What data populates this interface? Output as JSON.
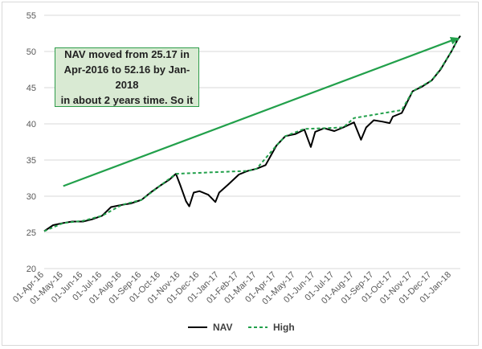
{
  "chart_data": {
    "type": "line",
    "title": "",
    "xlabel": "",
    "ylabel": "",
    "ylim": [
      20,
      55
    ],
    "y_ticks": [
      "20",
      "25",
      "30",
      "35",
      "40",
      "45",
      "50",
      "55"
    ],
    "x_ticks": [
      "01-Apr-16",
      "01-May-16",
      "01-Jun-16",
      "01-Jul-16",
      "01-Aug-16",
      "01-Sep-16",
      "01-Oct-16",
      "01-Nov-16",
      "01-Dec-16",
      "01-Jan-17",
      "01-Feb-17",
      "01-Mar-17",
      "01-Apr-17",
      "01-May-17",
      "01-Jun-17",
      "01-Jul-17",
      "01-Aug-17",
      "01-Sep-17",
      "01-Oct-17",
      "01-Nov-17",
      "01-Dec-17",
      "01-Jan-18"
    ],
    "grid": "horizontal",
    "legend_position": "bottom",
    "colors": {
      "nav": "#000000",
      "high": "#22a04b",
      "arrow": "#22a04b"
    },
    "series": [
      {
        "name": "NAV",
        "x": [
          "2016-04-01",
          "2016-04-15",
          "2016-05-01",
          "2016-05-15",
          "2016-06-01",
          "2016-06-15",
          "2016-07-01",
          "2016-07-15",
          "2016-08-01",
          "2016-08-15",
          "2016-09-01",
          "2016-09-15",
          "2016-10-01",
          "2016-10-15",
          "2016-10-25",
          "2016-11-01",
          "2016-11-10",
          "2016-11-15",
          "2016-11-22",
          "2016-12-01",
          "2016-12-15",
          "2016-12-26",
          "2017-01-01",
          "2017-01-15",
          "2017-02-01",
          "2017-02-15",
          "2017-03-01",
          "2017-03-15",
          "2017-04-01",
          "2017-04-15",
          "2017-05-01",
          "2017-05-15",
          "2017-05-25",
          "2017-06-01",
          "2017-06-15",
          "2017-07-01",
          "2017-07-15",
          "2017-08-01",
          "2017-08-12",
          "2017-08-20",
          "2017-09-01",
          "2017-09-15",
          "2017-09-26",
          "2017-10-01",
          "2017-10-15",
          "2017-11-01",
          "2017-11-15",
          "2017-12-01",
          "2017-12-15",
          "2018-01-01",
          "2018-01-10",
          "2018-01-15"
        ],
        "values": [
          25.17,
          26.0,
          26.3,
          26.5,
          26.5,
          26.8,
          27.3,
          28.5,
          28.8,
          29.0,
          29.5,
          30.5,
          31.5,
          32.3,
          33.1,
          31.5,
          29.3,
          28.6,
          30.5,
          30.7,
          30.2,
          29.2,
          30.5,
          31.6,
          33.0,
          33.5,
          33.8,
          34.3,
          37.0,
          38.3,
          38.6,
          39.2,
          36.8,
          38.9,
          39.4,
          39.0,
          39.5,
          40.2,
          37.8,
          39.5,
          40.5,
          40.3,
          40.1,
          41.0,
          41.5,
          44.5,
          45.1,
          46.0,
          47.5,
          50.0,
          51.5,
          52.16
        ]
      },
      {
        "name": "High",
        "x": [
          "2016-04-01",
          "2016-05-01",
          "2016-06-01",
          "2016-07-01",
          "2016-08-01",
          "2016-09-01",
          "2016-10-01",
          "2016-10-25",
          "2017-02-15",
          "2017-03-01",
          "2017-04-01",
          "2017-04-15",
          "2017-05-15",
          "2017-07-15",
          "2017-08-01",
          "2017-10-15",
          "2017-11-01",
          "2017-12-01",
          "2017-12-15",
          "2018-01-01",
          "2018-01-10",
          "2018-01-15"
        ],
        "values": [
          25.17,
          26.3,
          26.6,
          27.3,
          28.8,
          29.5,
          31.5,
          33.1,
          33.5,
          33.8,
          37.0,
          38.3,
          39.3,
          39.5,
          40.8,
          41.9,
          44.5,
          46.0,
          47.6,
          50.0,
          51.5,
          52.16
        ]
      }
    ],
    "annotation": "NAV moved from 25.17 in\nApr-2016 to 52.16 by Jan-2018\nin about 2 years time. So it"
  }
}
